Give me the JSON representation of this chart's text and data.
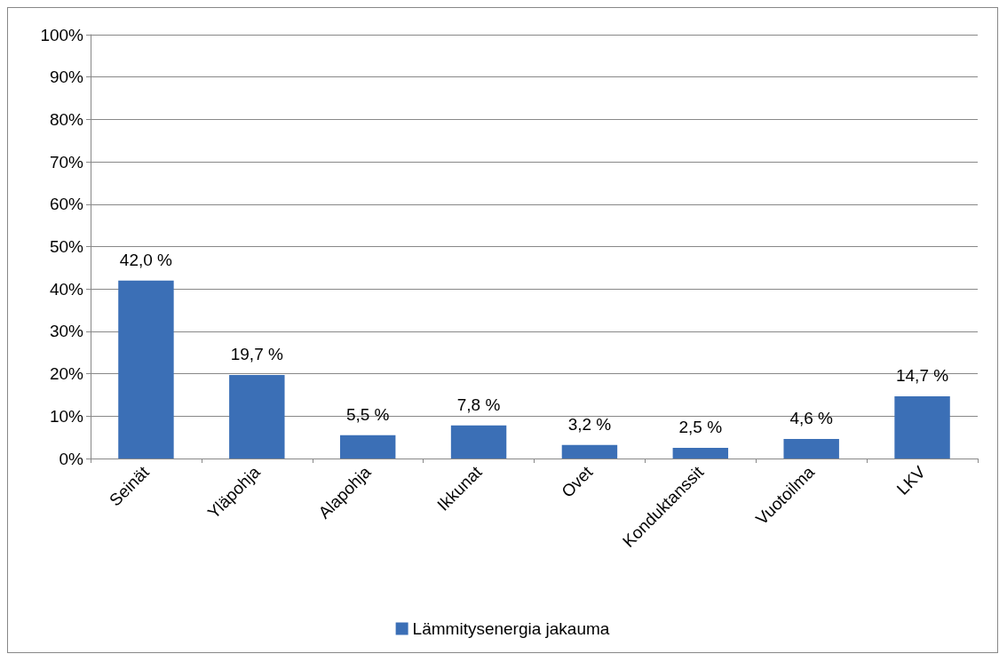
{
  "chart_data": {
    "type": "bar",
    "categories": [
      "Seinät",
      "Yläpohja",
      "Alapohja",
      "Ikkunat",
      "Ovet",
      "Konduktanssit",
      "Vuotoilma",
      "LKV"
    ],
    "series": [
      {
        "name": "Lämmitysenergia jakauma",
        "color": "#3b6fb6",
        "values": [
          42.0,
          19.7,
          5.5,
          7.8,
          3.2,
          2.5,
          4.6,
          14.7
        ],
        "value_labels": [
          "42,0 %",
          "19,7 %",
          "5,5 %",
          "7,8 %",
          "3,2 %",
          "2,5 %",
          "4,6 %",
          "14,7 %"
        ]
      }
    ],
    "ylim": [
      0,
      100
    ],
    "yticks": [
      {
        "value": 0,
        "label": "0%"
      },
      {
        "value": 10,
        "label": "10%"
      },
      {
        "value": 20,
        "label": "20%"
      },
      {
        "value": 30,
        "label": "30%"
      },
      {
        "value": 40,
        "label": "40%"
      },
      {
        "value": 50,
        "label": "50%"
      },
      {
        "value": 60,
        "label": "60%"
      },
      {
        "value": 70,
        "label": "70%"
      },
      {
        "value": 80,
        "label": "80%"
      },
      {
        "value": 90,
        "label": "90%"
      },
      {
        "value": 100,
        "label": "100%"
      }
    ],
    "grid": "y",
    "legend": "bottom"
  }
}
